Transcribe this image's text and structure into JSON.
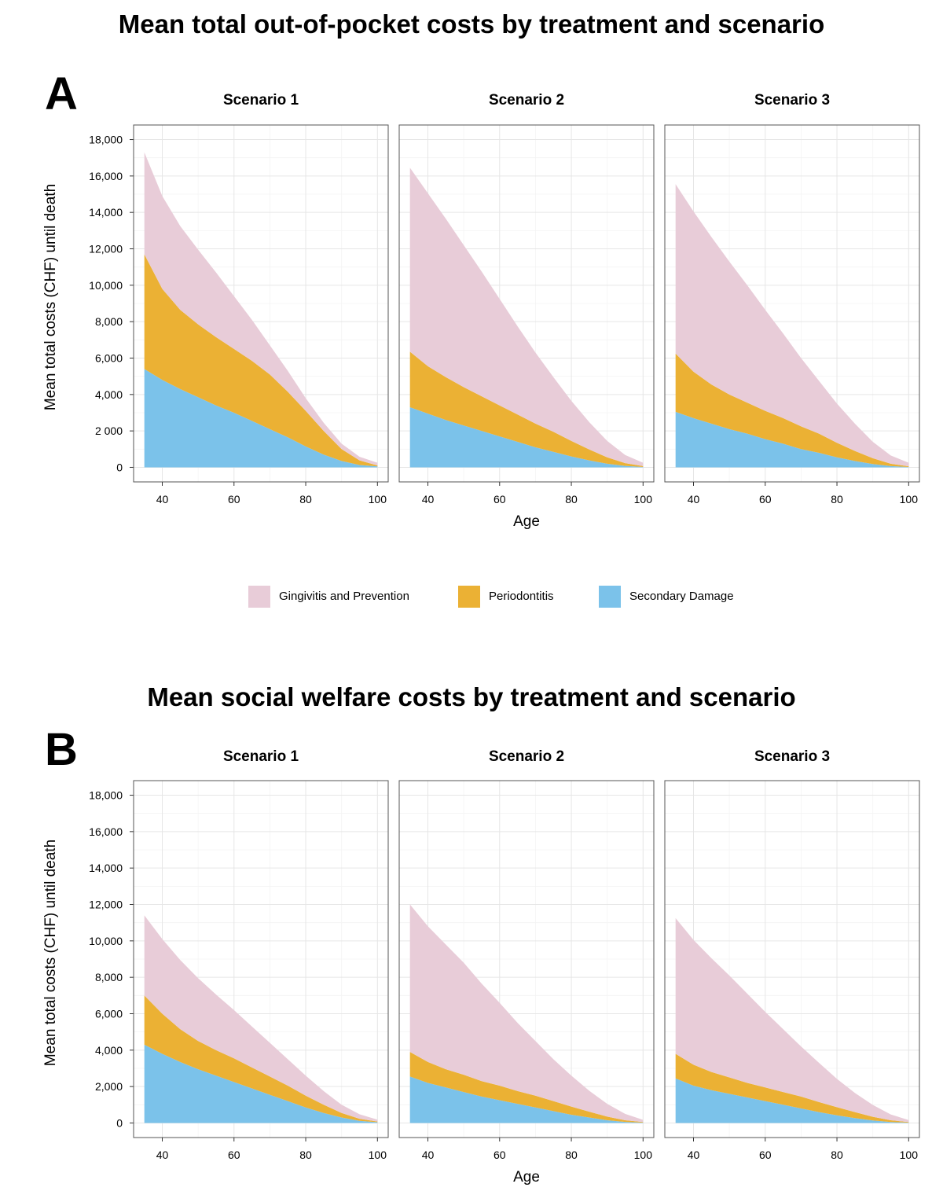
{
  "titles": {
    "a": "Mean total out-of-pocket costs by treatment and scenario",
    "b": "Mean social welfare costs by treatment and scenario"
  },
  "panel_letters": {
    "a": "A",
    "b": "B"
  },
  "legend": [
    {
      "label": "Gingivitis and Prevention",
      "color": "#e8ccd8"
    },
    {
      "label": "Periodontitis",
      "color": "#ebb134"
    },
    {
      "label": "Secondary Damage",
      "color": "#7bc2ea"
    }
  ],
  "chart_data": [
    {
      "type": "area",
      "stacked": true,
      "title": "Mean total out-of-pocket costs by treatment and scenario",
      "xlabel": "Age",
      "ylabel": "Mean total costs (CHF) until death",
      "xlim": [
        32,
        103
      ],
      "ylim": [
        -800,
        18800
      ],
      "x_ticks": [
        40,
        60,
        80,
        100
      ],
      "y_ticks": [
        0,
        2000,
        4000,
        6000,
        8000,
        10000,
        12000,
        14000,
        16000,
        18000
      ],
      "y_tick_labels": [
        "0",
        "2 000",
        "4,000",
        "6,000",
        "8,000",
        "10,000",
        "12,000",
        "14,000",
        "16,000",
        "18,000"
      ],
      "grid": true,
      "x": [
        35,
        40,
        45,
        50,
        55,
        60,
        65,
        70,
        75,
        80,
        85,
        90,
        95,
        100
      ],
      "facets": [
        {
          "name": "Scenario 1",
          "series": [
            {
              "name": "Secondary Damage",
              "values": [
                5400,
                4800,
                4300,
                3850,
                3400,
                3000,
                2550,
                2100,
                1650,
                1150,
                700,
                350,
                130,
                50
              ]
            },
            {
              "name": "Periodontitis",
              "values": [
                6300,
                5000,
                4350,
                4000,
                3750,
                3500,
                3300,
                3000,
                2500,
                1950,
                1300,
                650,
                250,
                50
              ]
            },
            {
              "name": "Gingivitis and Prevention",
              "values": [
                5600,
                5100,
                4600,
                4100,
                3550,
                2900,
                2250,
                1600,
                1150,
                700,
                450,
                300,
                200,
                150
              ]
            }
          ]
        },
        {
          "name": "Scenario 2",
          "series": [
            {
              "name": "Secondary Damage",
              "values": [
                3300,
                2950,
                2600,
                2300,
                2000,
                1700,
                1400,
                1100,
                850,
                600,
                380,
                200,
                80,
                20
              ]
            },
            {
              "name": "Periodontitis",
              "values": [
                3050,
                2600,
                2350,
                2100,
                1900,
                1700,
                1500,
                1300,
                1100,
                850,
                600,
                350,
                150,
                50
              ]
            },
            {
              "name": "Gingivitis and Prevention",
              "values": [
                10100,
                9500,
                8700,
                7800,
                6850,
                5850,
                4850,
                3900,
                3000,
                2200,
                1500,
                900,
                450,
                180
              ]
            }
          ]
        },
        {
          "name": "Scenario 3",
          "series": [
            {
              "name": "Secondary Damage",
              "values": [
                3050,
                2700,
                2400,
                2100,
                1850,
                1550,
                1300,
                1000,
                800,
                550,
                350,
                180,
                70,
                20
              ]
            },
            {
              "name": "Periodontitis",
              "values": [
                3200,
                2550,
                2150,
                1900,
                1700,
                1550,
                1400,
                1250,
                1050,
                800,
                550,
                320,
                130,
                40
              ]
            },
            {
              "name": "Gingivitis and Prevention",
              "values": [
                9300,
                8800,
                8100,
                7300,
                6450,
                5550,
                4650,
                3750,
                2900,
                2150,
                1500,
                900,
                450,
                190
              ]
            }
          ]
        }
      ]
    },
    {
      "type": "area",
      "stacked": true,
      "title": "Mean social welfare costs by treatment and scenario",
      "xlabel": "Age",
      "ylabel": "Mean total costs (CHF) until death",
      "xlim": [
        32,
        103
      ],
      "ylim": [
        -800,
        18800
      ],
      "x_ticks": [
        40,
        60,
        80,
        100
      ],
      "y_ticks": [
        0,
        2000,
        4000,
        6000,
        8000,
        10000,
        12000,
        14000,
        16000,
        18000
      ],
      "y_tick_labels": [
        "0",
        "2,000",
        "4,000",
        "6,000",
        "8,000",
        "10,000",
        "12,000",
        "14,000",
        "16,000",
        "18,000"
      ],
      "grid": true,
      "x": [
        35,
        40,
        45,
        50,
        55,
        60,
        65,
        70,
        75,
        80,
        85,
        90,
        95,
        100
      ],
      "facets": [
        {
          "name": "Scenario 1",
          "series": [
            {
              "name": "Secondary Damage",
              "values": [
                4300,
                3800,
                3350,
                2950,
                2600,
                2250,
                1900,
                1550,
                1200,
                850,
                550,
                300,
                120,
                40
              ]
            },
            {
              "name": "Periodontitis",
              "values": [
                2700,
                2200,
                1800,
                1550,
                1400,
                1300,
                1150,
                1000,
                850,
                650,
                450,
                250,
                110,
                40
              ]
            },
            {
              "name": "Gingivitis and Prevention",
              "values": [
                4400,
                4100,
                3800,
                3450,
                3050,
                2650,
                2250,
                1850,
                1450,
                1100,
                750,
                450,
                250,
                100
              ]
            }
          ]
        },
        {
          "name": "Scenario 2",
          "series": [
            {
              "name": "Secondary Damage",
              "values": [
                2550,
                2200,
                1950,
                1700,
                1450,
                1250,
                1050,
                850,
                650,
                450,
                300,
                150,
                60,
                20
              ]
            },
            {
              "name": "Periodontitis",
              "values": [
                1350,
                1150,
                1000,
                950,
                850,
                800,
                700,
                650,
                550,
                450,
                320,
                200,
                90,
                30
              ]
            },
            {
              "name": "Gingivitis and Prevention",
              "values": [
                8100,
                7450,
                6850,
                6150,
                5350,
                4550,
                3750,
                3000,
                2300,
                1700,
                1150,
                700,
                350,
                120
              ]
            }
          ]
        },
        {
          "name": "Scenario 3",
          "series": [
            {
              "name": "Secondary Damage",
              "values": [
                2450,
                2050,
                1800,
                1600,
                1400,
                1200,
                1000,
                800,
                600,
                420,
                270,
                140,
                55,
                20
              ]
            },
            {
              "name": "Periodontitis",
              "values": [
                1350,
                1150,
                1000,
                900,
                800,
                750,
                700,
                650,
                550,
                450,
                330,
                200,
                95,
                30
              ]
            },
            {
              "name": "Gingivitis and Prevention",
              "values": [
                7450,
                6850,
                6250,
                5600,
                4900,
                4150,
                3450,
                2750,
                2150,
                1550,
                1050,
                650,
                320,
                110
              ]
            }
          ]
        }
      ]
    }
  ]
}
